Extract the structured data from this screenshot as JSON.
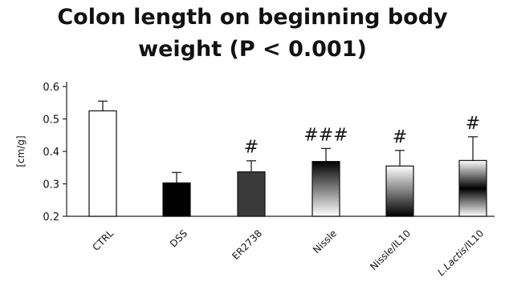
{
  "chart_data": {
    "type": "bar",
    "title_line1": "Colon length on beginning body",
    "title_line2": "weight (P < 0.001)",
    "ylabel": "[cm/g]",
    "xlabel": "",
    "ylim": [
      0.2,
      0.6
    ],
    "yticks": [
      "0.2",
      "0.3",
      "0.4",
      "0.5",
      "0.6"
    ],
    "grid": false,
    "categories": [
      {
        "label": "CTRL",
        "italic_prefix": "",
        "fill": "white"
      },
      {
        "label": "DSS",
        "italic_prefix": "",
        "fill": "black"
      },
      {
        "label": "ER2738",
        "italic_prefix": "",
        "fill": "dark-gray"
      },
      {
        "label": "Nissle",
        "italic_prefix": "",
        "fill": "gradient-down"
      },
      {
        "label": "Nissle/IL10",
        "italic_prefix": "",
        "fill": "gradient-up"
      },
      {
        "label": "/IL10",
        "italic_prefix": "L.Lactis",
        "fill": "gradient-mid"
      }
    ],
    "values": [
      0.525,
      0.303,
      0.337,
      0.369,
      0.355,
      0.372
    ],
    "errors": [
      0.03,
      0.032,
      0.034,
      0.04,
      0.048,
      0.073
    ],
    "significance": [
      "",
      "",
      "#",
      "###",
      "#",
      "#"
    ]
  }
}
